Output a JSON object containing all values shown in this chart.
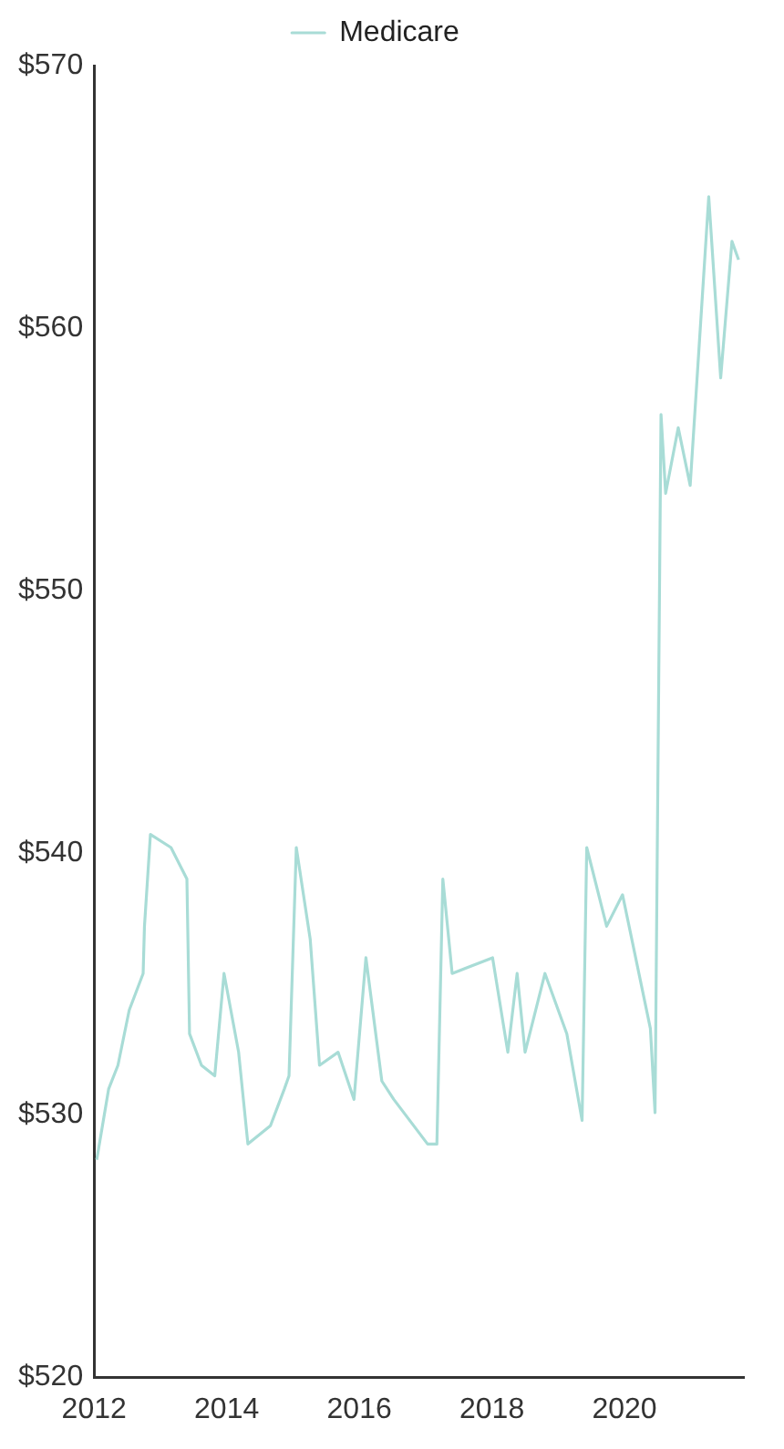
{
  "chart_data": {
    "type": "line",
    "x": [
      2012.04,
      2012.22,
      2012.36,
      2012.53,
      2012.74,
      2012.76,
      2012.85,
      2013.16,
      2013.4,
      2013.44,
      2013.62,
      2013.82,
      2013.96,
      2014.18,
      2014.32,
      2014.66,
      2014.87,
      2014.94,
      2015.05,
      2015.26,
      2015.4,
      2015.68,
      2015.92,
      2016.1,
      2016.34,
      2016.52,
      2017.03,
      2017.17,
      2017.26,
      2017.4,
      2018.01,
      2018.24,
      2018.38,
      2018.5,
      2018.8,
      2019.13,
      2019.36,
      2019.43,
      2019.73,
      2019.97,
      2020.39,
      2020.46,
      2020.55,
      2020.62,
      2020.81,
      2020.99,
      2021.27,
      2021.45,
      2021.62,
      2021.72
    ],
    "series": [
      {
        "name": "Medicare",
        "color": "#a8dcd6",
        "values": [
          528.3,
          531,
          531.9,
          534,
          535.4,
          537.2,
          540.7,
          540.2,
          539,
          533.1,
          531.9,
          531.5,
          535.4,
          532.4,
          528.9,
          529.6,
          531,
          531.5,
          540.2,
          536.7,
          531.9,
          532.4,
          530.6,
          536,
          531.3,
          530.6,
          528.9,
          528.9,
          539,
          535.4,
          536,
          532.4,
          535.4,
          532.4,
          535.4,
          533.1,
          529.8,
          540.2,
          537.2,
          538.4,
          533.3,
          530.1,
          556.7,
          553.7,
          556.2,
          554,
          565,
          558.1,
          563.3,
          562.6
        ]
      }
    ],
    "xlim": [
      2012,
      2021.8
    ],
    "xticks": [
      2012,
      2014,
      2016,
      2018,
      2020
    ],
    "ylim": [
      520,
      570
    ],
    "yticks": [
      {
        "value": 520,
        "label": "$520"
      },
      {
        "value": 530,
        "label": "$530"
      },
      {
        "value": 540,
        "label": "$540"
      },
      {
        "value": 550,
        "label": "$550"
      },
      {
        "value": 560,
        "label": "$560"
      },
      {
        "value": 570,
        "label": "$570"
      }
    ],
    "grid": false,
    "legend": "top",
    "marker": "none",
    "line_style": "solid"
  }
}
